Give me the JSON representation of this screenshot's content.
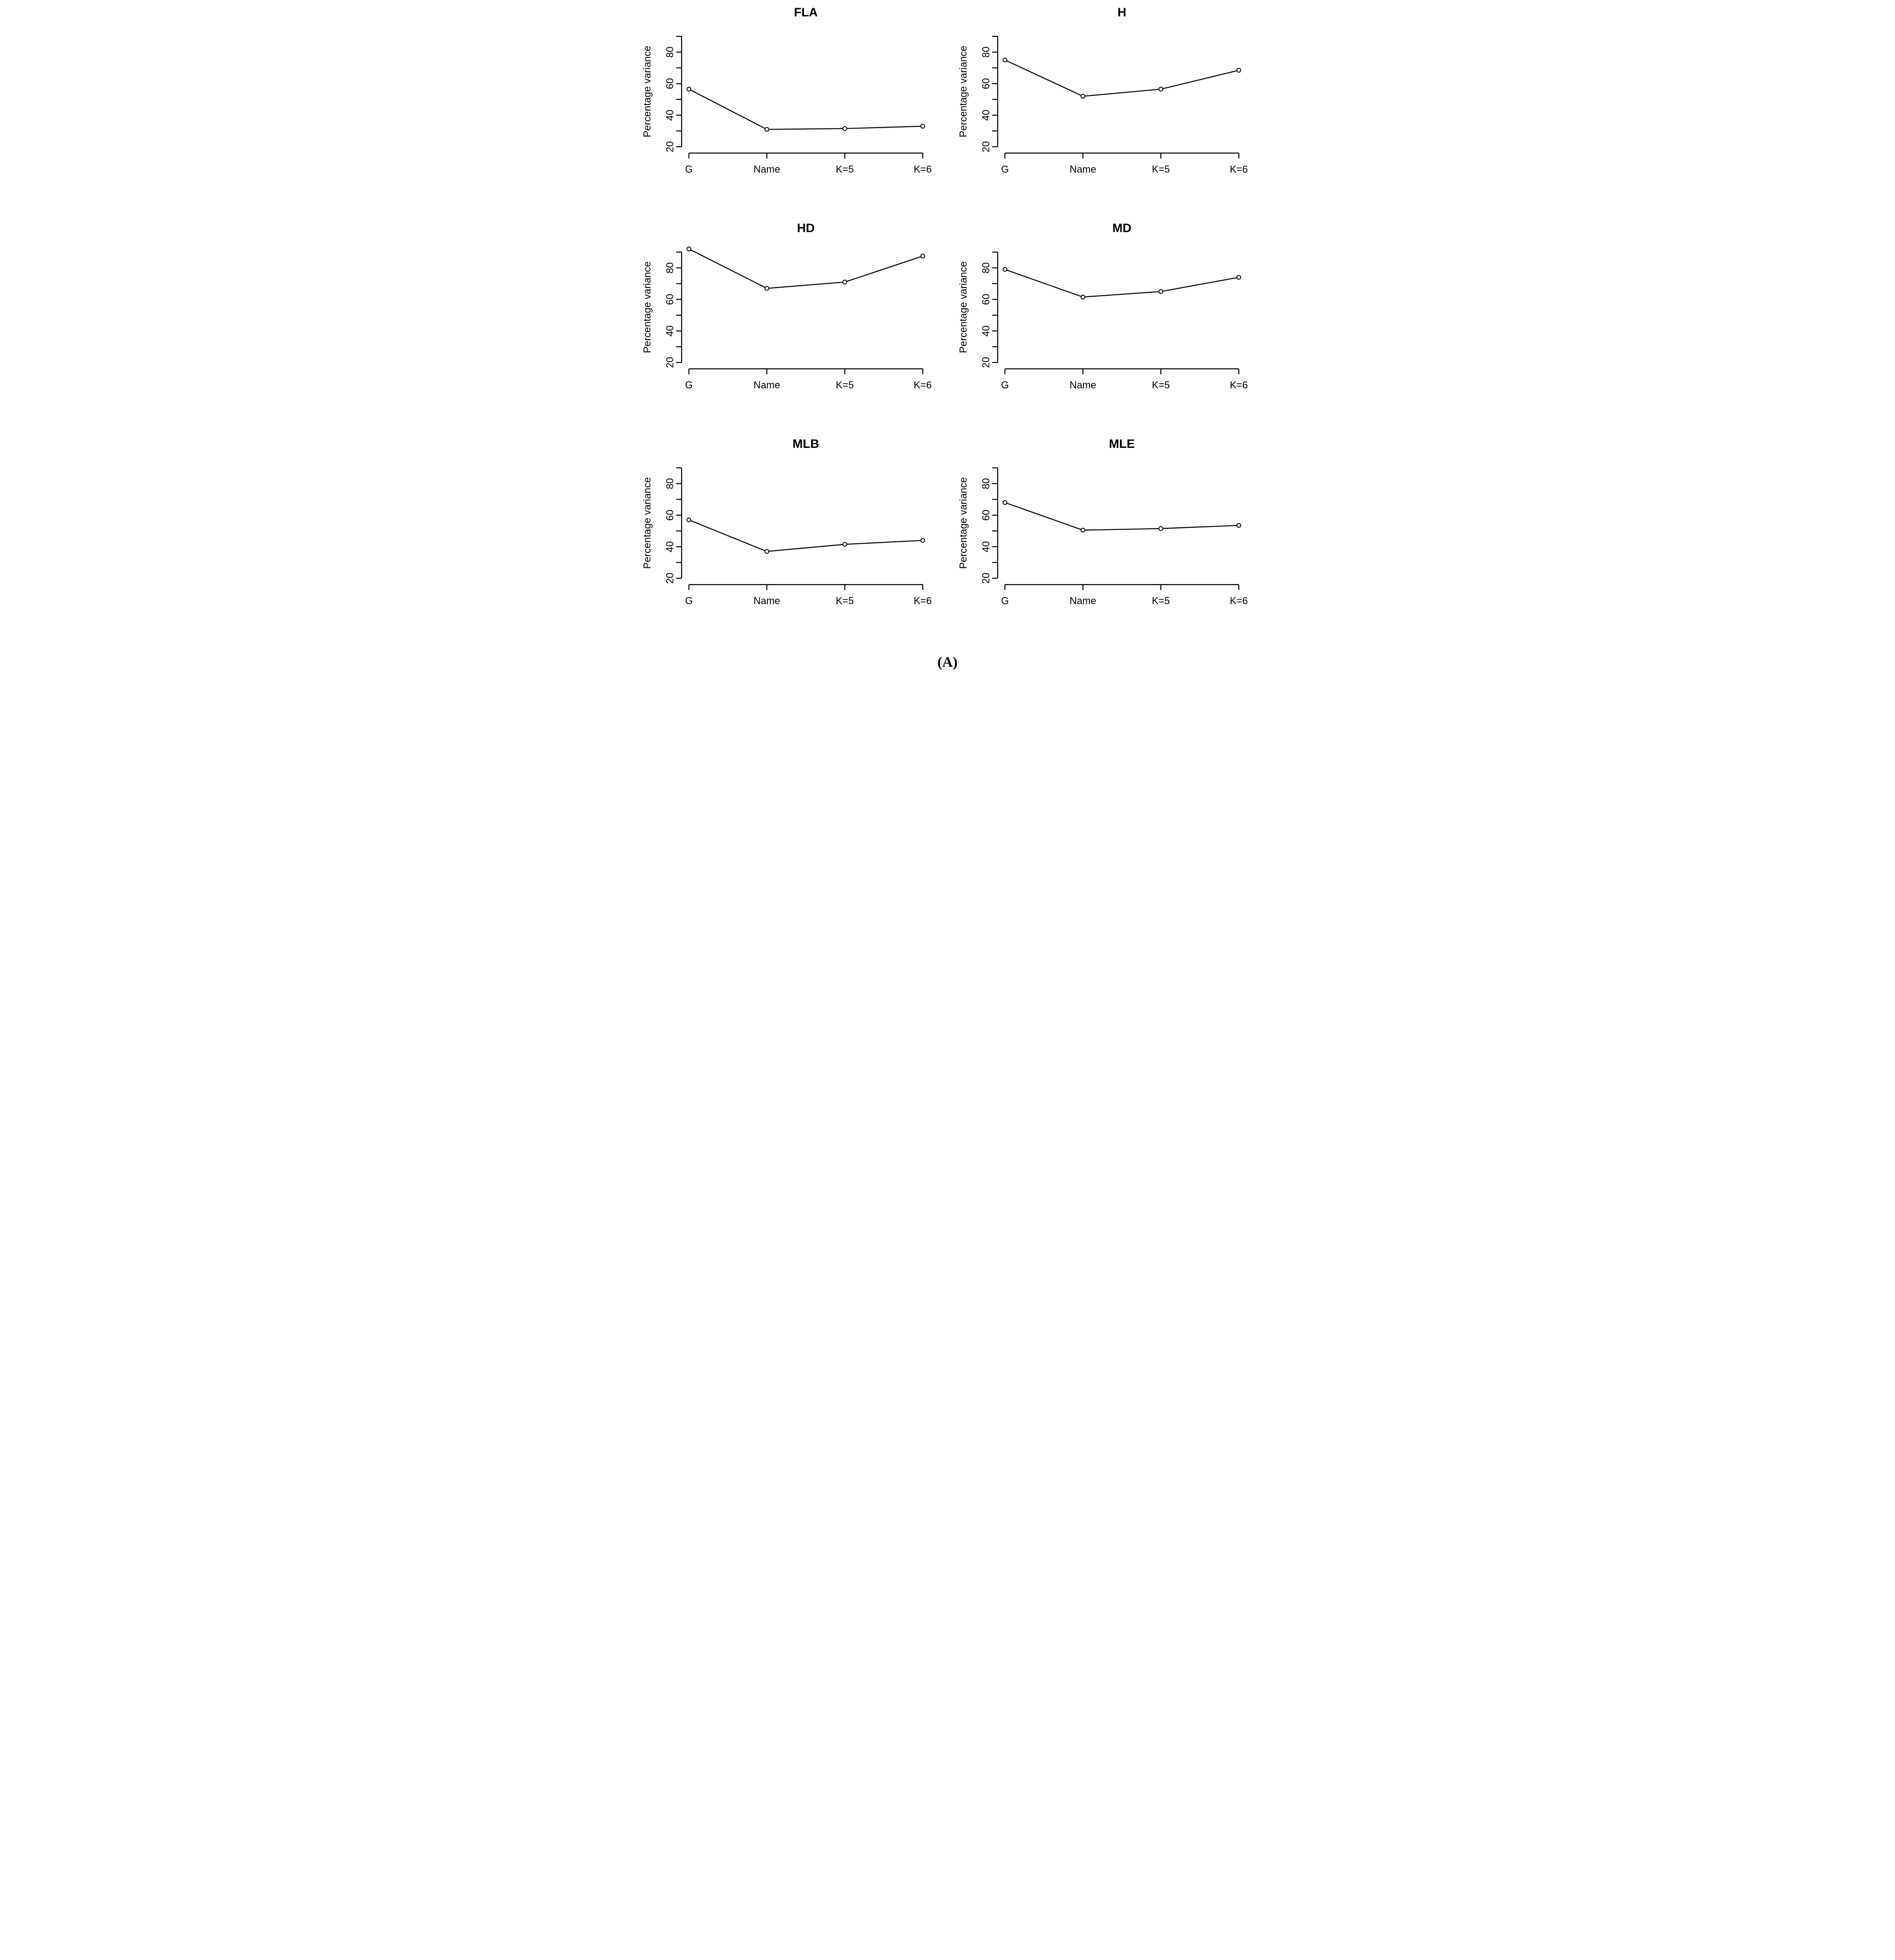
{
  "page": {
    "caption": "(A)",
    "background": "#ffffff",
    "foreground": "#000000"
  },
  "chart_data": [
    {
      "type": "line",
      "title": "FLA",
      "categories": [
        "G",
        "Name",
        "K=5",
        "K=6"
      ],
      "values": [
        56.5,
        31,
        31.5,
        33
      ],
      "xlabel": "",
      "ylabel": "Percentage variance",
      "ylim": [
        20,
        90
      ],
      "ytick_step": 10,
      "yticks_labeled": [
        20,
        40,
        60,
        80
      ],
      "grid": "off",
      "legend_position": "none",
      "marker": "open-circle",
      "line_color": "#000000"
    },
    {
      "type": "line",
      "title": "H",
      "categories": [
        "G",
        "Name",
        "K=5",
        "K=6"
      ],
      "values": [
        75,
        52,
        56.5,
        68.5
      ],
      "xlabel": "",
      "ylabel": "Percentage variance",
      "ylim": [
        20,
        90
      ],
      "ytick_step": 10,
      "yticks_labeled": [
        20,
        40,
        60,
        80
      ],
      "grid": "off",
      "legend_position": "none",
      "marker": "open-circle",
      "line_color": "#000000"
    },
    {
      "type": "line",
      "title": "HD",
      "categories": [
        "G",
        "Name",
        "K=5",
        "K=6"
      ],
      "values": [
        92,
        67,
        71,
        87.5
      ],
      "xlabel": "",
      "ylabel": "Percentage variance",
      "ylim": [
        20,
        90
      ],
      "ytick_step": 10,
      "yticks_labeled": [
        20,
        40,
        60,
        80
      ],
      "grid": "off",
      "legend_position": "none",
      "marker": "open-circle",
      "line_color": "#000000"
    },
    {
      "type": "line",
      "title": "MD",
      "categories": [
        "G",
        "Name",
        "K=5",
        "K=6"
      ],
      "values": [
        79,
        61.5,
        65,
        74
      ],
      "xlabel": "",
      "ylabel": "Percentage variance",
      "ylim": [
        20,
        90
      ],
      "ytick_step": 10,
      "yticks_labeled": [
        20,
        40,
        60,
        80
      ],
      "grid": "off",
      "legend_position": "none",
      "marker": "open-circle",
      "line_color": "#000000"
    },
    {
      "type": "line",
      "title": "MLB",
      "categories": [
        "G",
        "Name",
        "K=5",
        "K=6"
      ],
      "values": [
        57,
        37,
        41.5,
        44
      ],
      "xlabel": "",
      "ylabel": "Percentage variance",
      "ylim": [
        20,
        90
      ],
      "ytick_step": 10,
      "yticks_labeled": [
        20,
        40,
        60,
        80
      ],
      "grid": "off",
      "legend_position": "none",
      "marker": "open-circle",
      "line_color": "#000000"
    },
    {
      "type": "line",
      "title": "MLE",
      "categories": [
        "G",
        "Name",
        "K=5",
        "K=6"
      ],
      "values": [
        68,
        50.5,
        51.5,
        53.5
      ],
      "xlabel": "",
      "ylabel": "Percentage variance",
      "ylim": [
        20,
        90
      ],
      "ytick_step": 10,
      "yticks_labeled": [
        20,
        40,
        60,
        80
      ],
      "grid": "off",
      "legend_position": "none",
      "marker": "open-circle",
      "line_color": "#000000"
    }
  ]
}
